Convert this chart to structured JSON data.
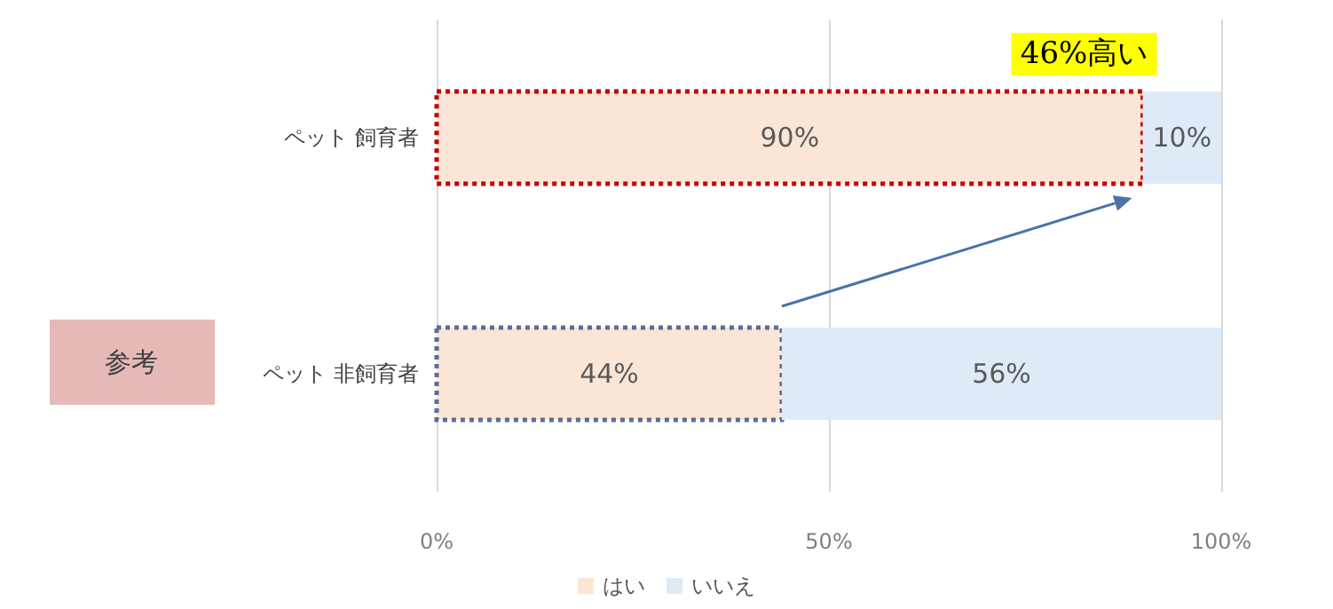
{
  "chart_data": {
    "type": "bar",
    "orientation": "horizontal",
    "stacked": true,
    "categories": [
      "ペット 飼育者",
      "ペット 非飼育者"
    ],
    "series": [
      {
        "name": "はい",
        "color": "#fbe5d6",
        "values": [
          90,
          44
        ],
        "value_labels": [
          "90%",
          "44%"
        ]
      },
      {
        "name": "いいえ",
        "color": "#deebf7",
        "values": [
          10,
          56
        ],
        "value_labels": [
          "10%",
          "56%"
        ]
      }
    ],
    "xlim": [
      0,
      100
    ],
    "xticks": [
      {
        "value": 0,
        "label": "0%"
      },
      {
        "value": 50,
        "label": "50%"
      },
      {
        "value": 100,
        "label": "100%"
      }
    ],
    "grid": "x",
    "legend": "bottom",
    "annotations": [
      {
        "text": "46%高い",
        "x": 90,
        "y": "ペット 飼育者"
      },
      "参考"
    ]
  }
}
